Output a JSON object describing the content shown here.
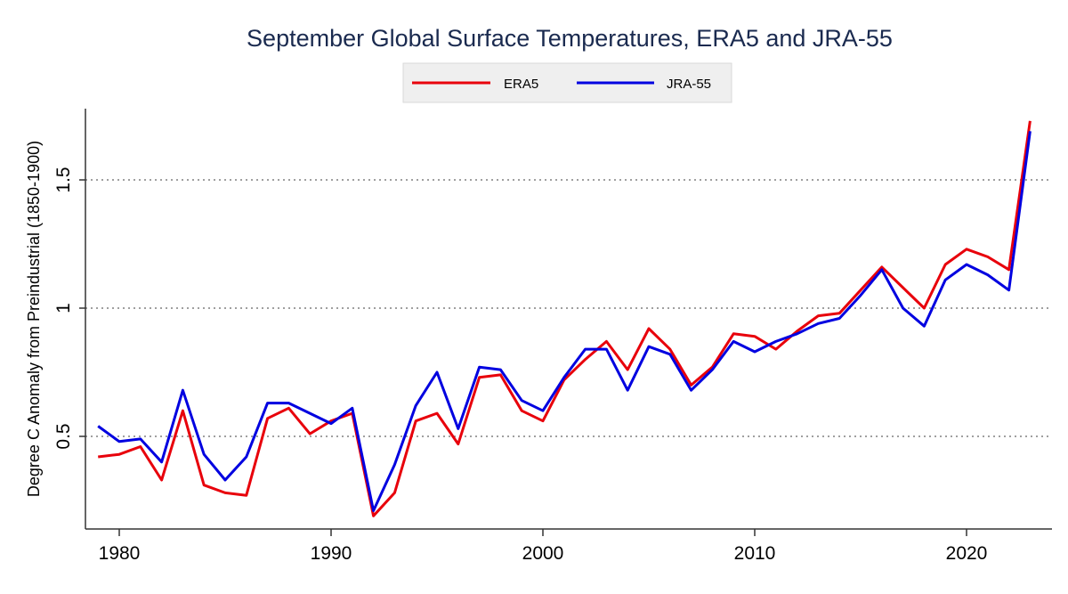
{
  "chart_data": {
    "type": "line",
    "title": "September Global Surface Temperatures, ERA5 and JRA-55",
    "xlabel": "",
    "ylabel": "Degree C Anomaly from Preindustrial (1850-1900)",
    "xlim": [
      1978,
      2024.5
    ],
    "ylim": [
      0.12,
      1.79
    ],
    "xticks": [
      1980,
      1990,
      2000,
      2010,
      2020
    ],
    "xtick_labels": [
      "1980",
      "1990",
      "2000",
      "2010",
      "2020"
    ],
    "yticks": [
      0.5,
      1,
      1.5
    ],
    "ytick_labels": [
      "0.5",
      "1",
      "1.5"
    ],
    "grid": "horizontal dotted at y ticks",
    "legend_position": "top-center",
    "x": [
      1979,
      1980,
      1981,
      1982,
      1983,
      1984,
      1985,
      1986,
      1987,
      1988,
      1989,
      1990,
      1991,
      1992,
      1993,
      1994,
      1995,
      1996,
      1997,
      1998,
      1999,
      2000,
      2001,
      2002,
      2003,
      2004,
      2005,
      2006,
      2007,
      2008,
      2009,
      2010,
      2011,
      2012,
      2013,
      2014,
      2015,
      2016,
      2017,
      2018,
      2019,
      2020,
      2021,
      2022,
      2023
    ],
    "series": [
      {
        "name": "ERA5",
        "color": "#e8000b",
        "values": [
          0.42,
          0.43,
          0.46,
          0.33,
          0.6,
          0.31,
          0.28,
          0.27,
          0.57,
          0.61,
          0.51,
          0.56,
          0.59,
          0.19,
          0.28,
          0.56,
          0.59,
          0.47,
          0.73,
          0.74,
          0.6,
          0.56,
          0.72,
          0.8,
          0.87,
          0.76,
          0.92,
          0.84,
          0.7,
          0.77,
          0.9,
          0.89,
          0.84,
          0.91,
          0.97,
          0.98,
          1.07,
          1.16,
          1.08,
          1.0,
          1.17,
          1.23,
          1.2,
          1.15,
          1.73
        ]
      },
      {
        "name": "JRA-55",
        "color": "#0000e0",
        "values": [
          0.54,
          0.48,
          0.49,
          0.4,
          0.68,
          0.43,
          0.33,
          0.42,
          0.63,
          0.63,
          0.59,
          0.55,
          0.61,
          0.21,
          0.39,
          0.62,
          0.75,
          0.53,
          0.77,
          0.76,
          0.64,
          0.6,
          0.73,
          0.84,
          0.84,
          0.68,
          0.85,
          0.82,
          0.68,
          0.76,
          0.87,
          0.83,
          0.87,
          0.9,
          0.94,
          0.96,
          1.05,
          1.15,
          1.0,
          0.93,
          1.11,
          1.17,
          1.13,
          1.07,
          1.69
        ]
      }
    ]
  }
}
